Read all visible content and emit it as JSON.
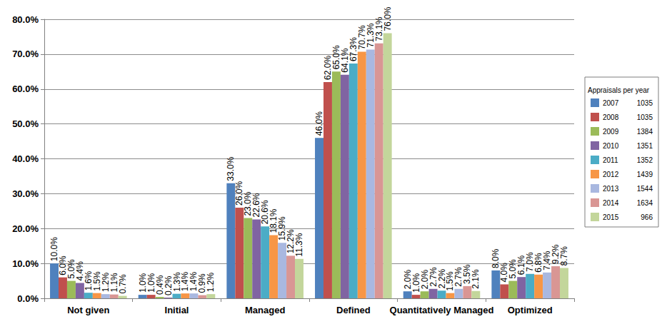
{
  "chart_data": {
    "type": "bar",
    "categories": [
      "Not given",
      "Initial",
      "Managed",
      "Defined",
      "Quantitatively Managed",
      "Optimized"
    ],
    "ylim": [
      0,
      80
    ],
    "yticks": [
      {
        "value": 0,
        "label": "0.0%"
      },
      {
        "value": 10,
        "label": "10.0%"
      },
      {
        "value": 20,
        "label": "20.0%"
      },
      {
        "value": 30,
        "label": "30.0%"
      },
      {
        "value": 40,
        "label": "40.0%"
      },
      {
        "value": 50,
        "label": "50.0%"
      },
      {
        "value": 60,
        "label": "60.0%"
      },
      {
        "value": 70,
        "label": "70.0%"
      },
      {
        "value": 80,
        "label": "80.0%"
      }
    ],
    "grid": true,
    "data_labels": true,
    "legend": "right",
    "legend_title": "Appraisals per year",
    "series": [
      {
        "name": "2007",
        "appraisals": 1035,
        "color": "#4f81bd",
        "values": [
          10.0,
          1.0,
          33.0,
          46.0,
          2.0,
          8.0
        ],
        "value_labels": [
          "10.0%",
          "1.0%",
          "33.0%",
          "46.0%",
          "2.0%",
          "8.0%"
        ]
      },
      {
        "name": "2008",
        "appraisals": 1035,
        "color": "#c0504d",
        "values": [
          6.0,
          1.0,
          26.0,
          62.0,
          1.0,
          4.0
        ],
        "value_labels": [
          "6.0%",
          "1.0%",
          "26.0%",
          "62.0%",
          "1.0%",
          "4.0%"
        ]
      },
      {
        "name": "2009",
        "appraisals": 1384,
        "color": "#9bbb59",
        "values": [
          5.0,
          0.4,
          23.0,
          65.0,
          2.0,
          5.0
        ],
        "value_labels": [
          "5.0%",
          "0.4%",
          "23.0%",
          "65.0%",
          "2.0%",
          "5.0%"
        ]
      },
      {
        "name": "2010",
        "appraisals": 1351,
        "color": "#8064a2",
        "values": [
          4.4,
          0.2,
          22.6,
          64.1,
          2.7,
          6.1
        ],
        "value_labels": [
          "4.4%",
          "0.2%",
          "22.6%",
          "64.1%",
          "2.7%",
          "6.1%"
        ]
      },
      {
        "name": "2011",
        "appraisals": 1352,
        "color": "#4bacc6",
        "values": [
          1.6,
          1.3,
          20.6,
          67.3,
          2.2,
          7.0
        ],
        "value_labels": [
          "1.6%",
          "1.3%",
          "20.6%",
          "67.3%",
          "2.2%",
          "7.0%"
        ]
      },
      {
        "name": "2012",
        "appraisals": 1439,
        "color": "#f79646",
        "values": [
          1.5,
          1.4,
          18.1,
          70.7,
          1.5,
          6.8
        ],
        "value_labels": [
          "1.5%",
          "1.4%",
          "18.1%",
          "70.7%",
          "1.5%",
          "6.8%"
        ]
      },
      {
        "name": "2013",
        "appraisals": 1544,
        "color": "#a9b8e0",
        "values": [
          1.2,
          1.4,
          15.9,
          71.3,
          2.7,
          7.4
        ],
        "value_labels": [
          "1.2%",
          "1.4%",
          "15.9%",
          "71.3%",
          "2.7%",
          "7.4%"
        ]
      },
      {
        "name": "2014",
        "appraisals": 1634,
        "color": "#d99694",
        "values": [
          1.1,
          0.9,
          12.2,
          73.1,
          3.5,
          9.2
        ],
        "value_labels": [
          "1.1%",
          "0.9%",
          "12.2%",
          "73.1%",
          "3.5%",
          "9.2%"
        ]
      },
      {
        "name": "2015",
        "appraisals": 966,
        "color": "#c3d69b",
        "values": [
          0.7,
          1.2,
          11.3,
          76.0,
          2.1,
          8.7
        ],
        "value_labels": [
          "0.7%",
          "1.2%",
          "11.3%",
          "76.0%",
          "2.1%",
          "8.7%"
        ]
      }
    ]
  }
}
